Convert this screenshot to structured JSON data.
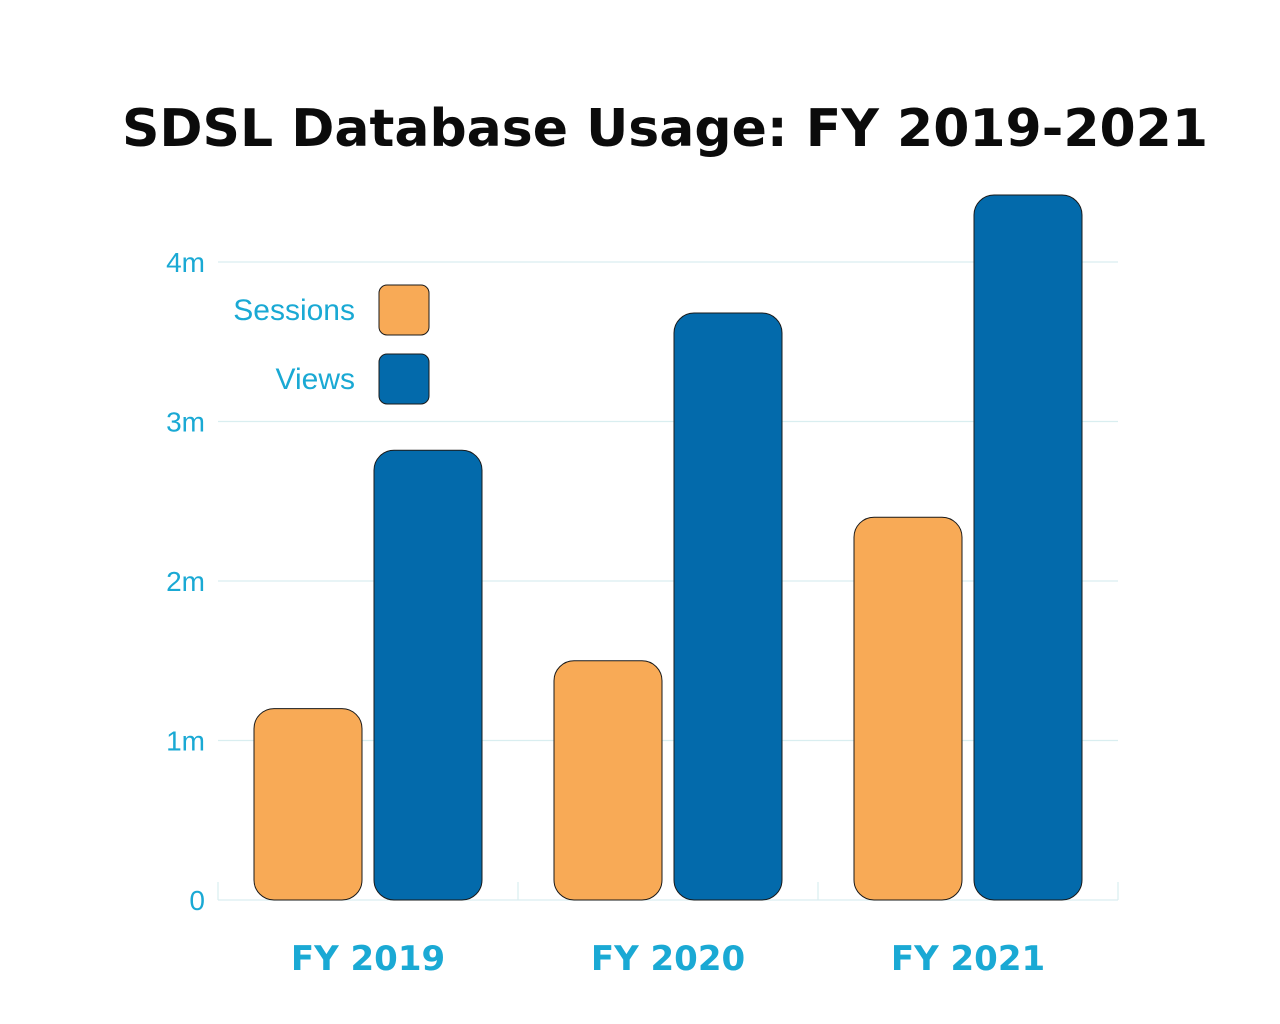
{
  "chart_data": {
    "type": "bar",
    "title": "SDSL Database Usage: FY 2019-2021",
    "categories": [
      "FY 2019",
      "FY 2020",
      "FY 2021"
    ],
    "series": [
      {
        "name": "Sessions",
        "color": "#f8aa56",
        "values": [
          1200000,
          1500000,
          2400000
        ]
      },
      {
        "name": "Views",
        "color": "#036aab",
        "values": [
          2820000,
          3680000,
          4420000
        ]
      }
    ],
    "yticks": [
      {
        "value": 0,
        "label": "0"
      },
      {
        "value": 1000000,
        "label": "1m"
      },
      {
        "value": 2000000,
        "label": "2m"
      },
      {
        "value": 3000000,
        "label": "3m"
      },
      {
        "value": 4000000,
        "label": "4m"
      }
    ],
    "ylim": [
      0,
      4420000
    ],
    "grid": true,
    "legend_position": "top-left",
    "colors": {
      "title": "#0b0b0b",
      "axis_text": "#1aa9d4",
      "grid": "#d9eef0"
    }
  }
}
